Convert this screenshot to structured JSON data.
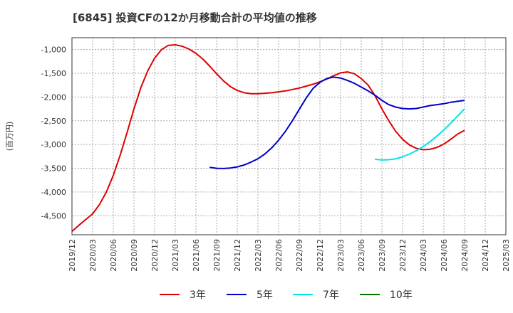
{
  "chart_data": {
    "type": "line",
    "title": "[6845]  投資CFの12か月移動合計の平均値の推移",
    "ylabel": "(百万円)",
    "xlabel": "",
    "ylim": [
      -4900,
      -750
    ],
    "yticks": [
      -1000,
      -1500,
      -2000,
      -2500,
      -3000,
      -3500,
      -4000,
      -4500
    ],
    "ytick_labels": [
      "-1,000",
      "-1,500",
      "-2,000",
      "-2,500",
      "-3,000",
      "-3,500",
      "-4,000",
      "-4,500"
    ],
    "x_start": "2019/12",
    "x_end": "2025/03",
    "x_tick_labels": [
      "2019/12",
      "2020/03",
      "2020/06",
      "2020/09",
      "2020/12",
      "2021/03",
      "2021/06",
      "2021/09",
      "2021/12",
      "2022/03",
      "2022/06",
      "2022/09",
      "2022/12",
      "2023/03",
      "2023/06",
      "2023/09",
      "2023/12",
      "2024/03",
      "2024/06",
      "2024/09",
      "2024/12",
      "2025/03"
    ],
    "grid": true,
    "legend_position": "bottom",
    "series": [
      {
        "name": "3年",
        "color": "#dd0000",
        "x": [
          "2019/12",
          "2020/01",
          "2020/02",
          "2020/03",
          "2020/04",
          "2020/05",
          "2020/06",
          "2020/07",
          "2020/08",
          "2020/09",
          "2020/10",
          "2020/11",
          "2020/12",
          "2021/01",
          "2021/02",
          "2021/03",
          "2021/04",
          "2021/05",
          "2021/06",
          "2021/07",
          "2021/08",
          "2021/09",
          "2021/10",
          "2021/11",
          "2021/12",
          "2022/01",
          "2022/02",
          "2022/03",
          "2022/04",
          "2022/05",
          "2022/06",
          "2022/07",
          "2022/08",
          "2022/09",
          "2022/10",
          "2022/11",
          "2022/12",
          "2023/01",
          "2023/02",
          "2023/03",
          "2023/04",
          "2023/05",
          "2023/06",
          "2023/07",
          "2023/08",
          "2023/09",
          "2023/10",
          "2023/11",
          "2023/12",
          "2024/01",
          "2024/02",
          "2024/03",
          "2024/04",
          "2024/05",
          "2024/06",
          "2024/07",
          "2024/08",
          "2024/09"
        ],
        "y": [
          -4830,
          -4700,
          -4580,
          -4460,
          -4260,
          -4000,
          -3650,
          -3220,
          -2750,
          -2250,
          -1800,
          -1450,
          -1180,
          -1000,
          -910,
          -900,
          -930,
          -990,
          -1080,
          -1200,
          -1350,
          -1510,
          -1660,
          -1780,
          -1860,
          -1910,
          -1930,
          -1930,
          -1920,
          -1910,
          -1890,
          -1870,
          -1840,
          -1810,
          -1770,
          -1730,
          -1680,
          -1620,
          -1550,
          -1490,
          -1470,
          -1510,
          -1610,
          -1750,
          -1970,
          -2250,
          -2500,
          -2720,
          -2890,
          -3010,
          -3080,
          -3110,
          -3100,
          -3060,
          -2990,
          -2890,
          -2780,
          -2700
        ]
      },
      {
        "name": "5年",
        "color": "#0000cc",
        "x": [
          "2021/08",
          "2021/09",
          "2021/10",
          "2021/11",
          "2021/12",
          "2022/01",
          "2022/02",
          "2022/03",
          "2022/04",
          "2022/05",
          "2022/06",
          "2022/07",
          "2022/08",
          "2022/09",
          "2022/10",
          "2022/11",
          "2022/12",
          "2023/01",
          "2023/02",
          "2023/03",
          "2023/04",
          "2023/05",
          "2023/06",
          "2023/07",
          "2023/08",
          "2023/09",
          "2023/10",
          "2023/11",
          "2023/12",
          "2024/01",
          "2024/02",
          "2024/03",
          "2024/04",
          "2024/05",
          "2024/06",
          "2024/07",
          "2024/08",
          "2024/09"
        ],
        "y": [
          -3480,
          -3500,
          -3505,
          -3495,
          -3470,
          -3430,
          -3370,
          -3300,
          -3200,
          -3070,
          -2910,
          -2720,
          -2500,
          -2260,
          -2020,
          -1820,
          -1690,
          -1610,
          -1580,
          -1600,
          -1650,
          -1710,
          -1790,
          -1870,
          -1960,
          -2070,
          -2160,
          -2210,
          -2240,
          -2250,
          -2240,
          -2210,
          -2180,
          -2160,
          -2140,
          -2110,
          -2090,
          -2070
        ]
      },
      {
        "name": "7年",
        "color": "#00e5e5",
        "x": [
          "2023/08",
          "2023/09",
          "2023/10",
          "2023/11",
          "2023/12",
          "2024/01",
          "2024/02",
          "2024/03",
          "2024/04",
          "2024/05",
          "2024/06",
          "2024/07",
          "2024/08",
          "2024/09"
        ],
        "y": [
          -3310,
          -3325,
          -3320,
          -3300,
          -3260,
          -3200,
          -3130,
          -3040,
          -2940,
          -2820,
          -2690,
          -2550,
          -2400,
          -2250
        ]
      },
      {
        "name": "10年",
        "color": "#007700",
        "x": [],
        "y": []
      }
    ]
  }
}
